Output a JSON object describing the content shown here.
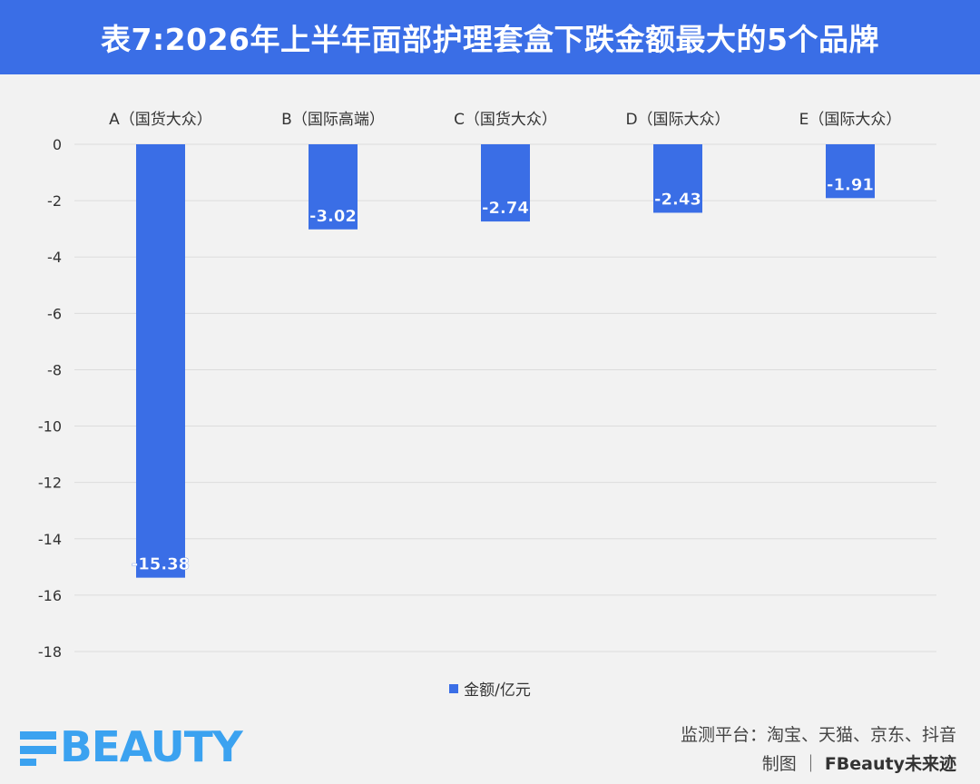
{
  "header": {
    "title": "表7:2026年上半年面部护理套盒下跌金额最大的5个品牌"
  },
  "chart_data": {
    "type": "bar",
    "categories": [
      "A（国货大众）",
      "B（国际高端）",
      "C（国货大众）",
      "D（国际大众）",
      "E（国际大众）"
    ],
    "series": [
      {
        "name": "金额/亿元",
        "values": [
          -15.38,
          -3.02,
          -2.74,
          -2.43,
          -1.91
        ]
      }
    ],
    "ylim": [
      -18,
      0
    ],
    "yticks": [
      "0",
      "-2",
      "-4",
      "-6",
      "-8",
      "-10",
      "-12",
      "-14",
      "-16",
      "-18"
    ],
    "data_labels": [
      "-15.38",
      "-3.02",
      "-2.74",
      "-2.43",
      "-1.91"
    ],
    "grid": true,
    "legend_position": "bottom",
    "category_axis_position": "top",
    "bar_color": "#3a6ee6"
  },
  "legend": {
    "label": "金额/亿元"
  },
  "footer": {
    "logo_text": "BEAUTY",
    "source_line": "监测平台：淘宝、天猫、京东、抖音",
    "credit_prefix": "制图",
    "credit_sep": "｜",
    "credit_name": "FBeauty未来迹"
  },
  "colors": {
    "accent": "#3a6ee6",
    "logo": "#3ba2f0",
    "background": "#f2f2f2"
  }
}
